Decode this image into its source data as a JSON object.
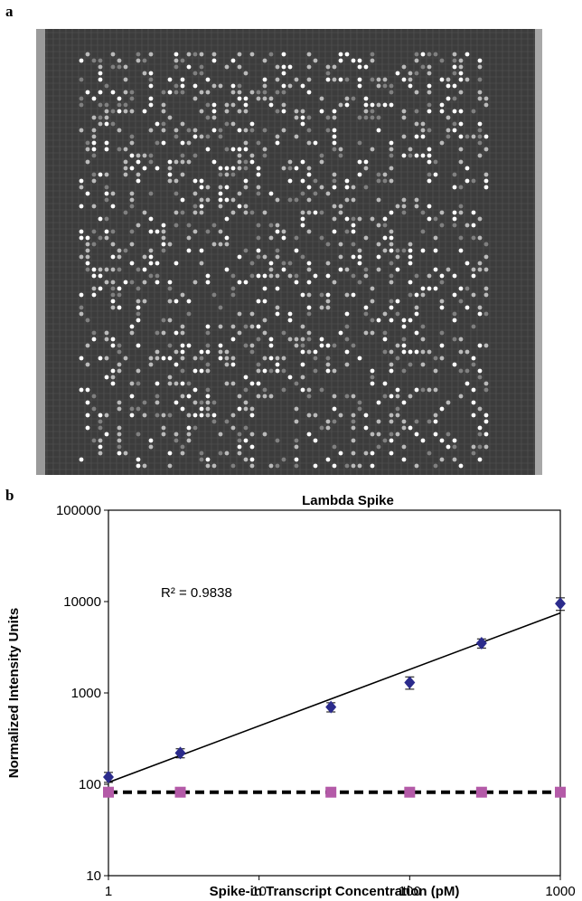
{
  "panel_labels": [
    "a",
    "b"
  ],
  "chart_data": {
    "type": "scatter",
    "title": "Lambda Spike",
    "x_label": "Spike-in Transcript Concentration (pM)",
    "y_label": "Normalized Intensity Units",
    "annotation": "R² = 0.9838",
    "log_x": true,
    "log_y": true,
    "xlim": [
      1,
      1000
    ],
    "xticks": [
      1,
      10,
      100,
      1000
    ],
    "ylim": [
      10,
      100000
    ],
    "yticks": [
      10,
      100,
      1000,
      10000,
      100000
    ],
    "x": [
      1,
      3,
      30,
      100,
      300,
      1000
    ],
    "series": [
      {
        "color": "#2b2b8c",
        "marker": "diamond",
        "values": [
          120,
          220,
          700,
          1300,
          3500,
          9500
        ],
        "errors": [
          15,
          25,
          80,
          200,
          400,
          1500
        ],
        "trendline": {
          "x": [
            1,
            1000
          ],
          "values": [
            105,
            7500
          ],
          "style": "solid"
        }
      },
      {
        "color": "#b45aa8",
        "marker": "square",
        "values": [
          82,
          82,
          82,
          82,
          82,
          82
        ],
        "trendline": {
          "x": [
            1,
            1000
          ],
          "values": [
            82,
            82
          ],
          "style": "dashed"
        }
      }
    ]
  }
}
